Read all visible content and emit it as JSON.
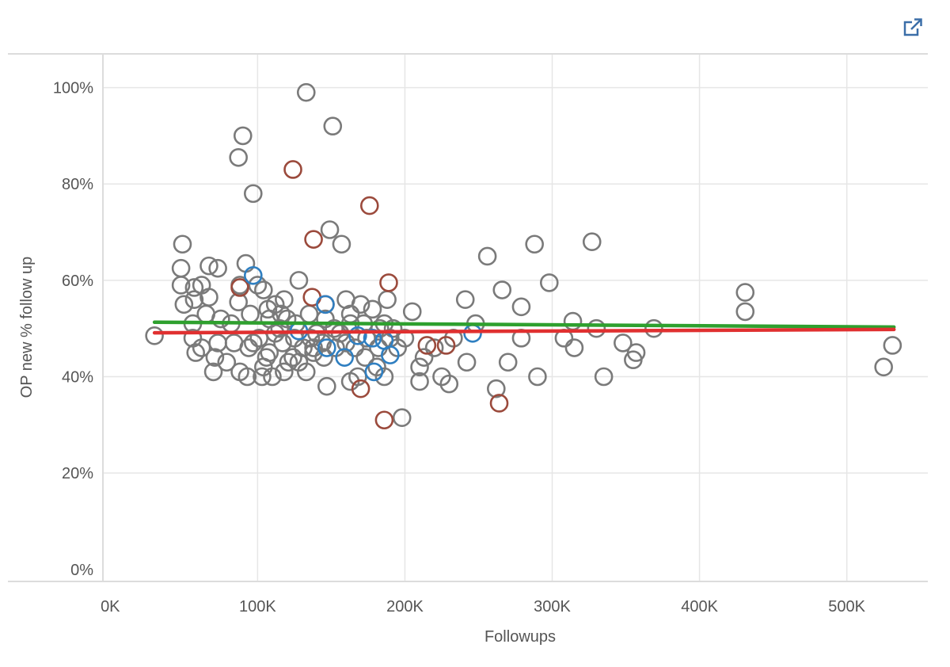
{
  "toolbar": {
    "popout_icon": "external-link-icon"
  },
  "colors": {
    "default": "#7a7a7a",
    "highlight_red": "#9b4a3c",
    "highlight_blue": "#2f7fc1",
    "trend_green": "#2ea02e",
    "trend_red": "#e03030",
    "grid": "#e6e6e6",
    "axis_text": "#555555"
  },
  "chart_data": {
    "type": "scatter",
    "xlabel": "Followups",
    "ylabel": "OP new % follow up",
    "xlim": [
      -5,
      555
    ],
    "ylim": [
      -2.5,
      107
    ],
    "x_unit": "K",
    "y_unit": "%",
    "grid": true,
    "x_ticks": [
      {
        "value": 0,
        "label": "0K"
      },
      {
        "value": 100,
        "label": "100K"
      },
      {
        "value": 200,
        "label": "200K"
      },
      {
        "value": 300,
        "label": "300K"
      },
      {
        "value": 400,
        "label": "400K"
      },
      {
        "value": 500,
        "label": "500K"
      }
    ],
    "y_ticks": [
      {
        "value": 0,
        "label": "0%"
      },
      {
        "value": 20,
        "label": "20%"
      },
      {
        "value": 40,
        "label": "40%"
      },
      {
        "value": 60,
        "label": "60%"
      },
      {
        "value": 80,
        "label": "80%"
      },
      {
        "value": 100,
        "label": "100%"
      }
    ],
    "series": [
      {
        "color": "#7a7a7a",
        "points": [
          [
            133,
            99
          ],
          [
            90,
            90
          ],
          [
            151,
            92
          ],
          [
            87,
            85.5
          ],
          [
            97,
            78
          ],
          [
            149,
            70.5
          ],
          [
            157,
            67.5
          ],
          [
            49,
            67.5
          ],
          [
            288,
            67.5
          ],
          [
            327,
            68
          ],
          [
            67,
            63
          ],
          [
            73,
            62.5
          ],
          [
            48,
            62.5
          ],
          [
            92,
            63.5
          ],
          [
            128,
            60
          ],
          [
            256,
            65
          ],
          [
            298,
            59.5
          ],
          [
            266,
            58
          ],
          [
            48,
            59
          ],
          [
            57,
            58.5
          ],
          [
            62,
            59
          ],
          [
            88,
            59
          ],
          [
            67,
            56.5
          ],
          [
            87,
            55.5
          ],
          [
            100,
            59
          ],
          [
            104,
            58
          ],
          [
            112,
            55
          ],
          [
            118,
            56
          ],
          [
            160,
            56
          ],
          [
            170,
            55
          ],
          [
            188,
            56
          ],
          [
            241,
            56
          ],
          [
            279,
            54.5
          ],
          [
            50,
            55
          ],
          [
            57,
            56
          ],
          [
            65,
            53
          ],
          [
            75,
            52
          ],
          [
            82,
            51
          ],
          [
            95,
            53
          ],
          [
            108,
            52
          ],
          [
            115,
            50
          ],
          [
            126,
            51
          ],
          [
            135,
            53
          ],
          [
            146,
            52
          ],
          [
            152,
            50
          ],
          [
            163,
            53
          ],
          [
            172,
            51
          ],
          [
            178,
            54
          ],
          [
            186,
            51
          ],
          [
            192,
            50
          ],
          [
            205,
            53.5
          ],
          [
            248,
            51
          ],
          [
            314,
            51.5
          ],
          [
            330,
            50
          ],
          [
            369,
            50
          ],
          [
            431,
            57.5
          ],
          [
            431,
            53.5
          ],
          [
            308,
            48
          ],
          [
            315,
            46
          ],
          [
            348,
            47
          ],
          [
            357,
            45
          ],
          [
            355,
            43.5
          ],
          [
            30,
            48.5
          ],
          [
            56,
            48
          ],
          [
            62,
            46
          ],
          [
            73,
            47
          ],
          [
            84,
            47
          ],
          [
            94,
            46
          ],
          [
            101,
            48
          ],
          [
            108,
            45
          ],
          [
            117,
            47
          ],
          [
            124,
            44
          ],
          [
            131,
            46
          ],
          [
            138,
            45
          ],
          [
            144,
            47
          ],
          [
            166,
            46
          ],
          [
            173,
            44
          ],
          [
            182,
            46
          ],
          [
            195,
            46
          ],
          [
            210,
            42
          ],
          [
            220,
            46
          ],
          [
            233,
            48
          ],
          [
            262,
            37.5
          ],
          [
            270,
            43
          ],
          [
            279,
            48
          ],
          [
            290,
            40
          ],
          [
            58,
            45
          ],
          [
            71,
            44
          ],
          [
            79,
            43
          ],
          [
            88,
            41
          ],
          [
            93,
            40
          ],
          [
            104,
            42
          ],
          [
            110,
            40
          ],
          [
            121,
            43
          ],
          [
            133,
            41
          ],
          [
            147,
            38
          ],
          [
            163,
            39
          ],
          [
            168,
            40
          ],
          [
            181,
            42
          ],
          [
            198,
            31.5
          ],
          [
            210,
            39
          ],
          [
            225,
            40
          ],
          [
            242,
            43
          ],
          [
            335,
            40
          ],
          [
            525,
            42
          ],
          [
            531,
            46.5
          ],
          [
            230,
            38.5
          ],
          [
            103,
            40
          ],
          [
            70,
            41
          ],
          [
            112,
            49
          ],
          [
            125,
            48
          ],
          [
            140,
            49
          ],
          [
            200,
            48
          ],
          [
            160,
            47
          ],
          [
            106,
            44
          ],
          [
            118,
            41
          ],
          [
            128,
            43
          ],
          [
            174,
            48
          ],
          [
            190,
            48
          ],
          [
            213,
            44
          ],
          [
            186,
            40
          ],
          [
            97,
            47
          ],
          [
            116,
            53
          ],
          [
            153,
            46
          ],
          [
            138,
            46
          ],
          [
            183,
            50
          ],
          [
            56,
            51
          ],
          [
            145,
            44
          ],
          [
            163,
            51
          ],
          [
            156,
            49
          ],
          [
            136,
            48
          ],
          [
            107,
            54
          ],
          [
            120,
            52
          ]
        ]
      },
      {
        "color": "#9b4a3c",
        "points": [
          [
            124,
            83
          ],
          [
            176,
            75.5
          ],
          [
            138,
            68.5
          ],
          [
            189,
            59.5
          ],
          [
            137,
            56.5
          ],
          [
            264,
            34.5
          ],
          [
            186,
            31
          ],
          [
            170,
            37.5
          ],
          [
            228,
            46.5
          ],
          [
            215,
            46.5
          ],
          [
            88,
            58.5
          ],
          [
            146,
            55
          ]
        ]
      },
      {
        "color": "#2f7fc1",
        "points": [
          [
            97,
            61
          ],
          [
            146,
            55
          ],
          [
            128,
            49.5
          ],
          [
            147,
            46
          ],
          [
            159,
            44
          ],
          [
            168,
            48.5
          ],
          [
            178,
            48
          ],
          [
            179,
            41
          ],
          [
            190,
            44.5
          ],
          [
            246,
            49
          ],
          [
            186,
            47.5
          ]
        ]
      }
    ],
    "trend_lines": [
      {
        "color": "#2ea02e",
        "x": [
          30,
          532
        ],
        "y": [
          51.3,
          50.3
        ]
      },
      {
        "color": "#e03030",
        "x": [
          30,
          532
        ],
        "y": [
          49.1,
          49.8
        ]
      }
    ]
  }
}
